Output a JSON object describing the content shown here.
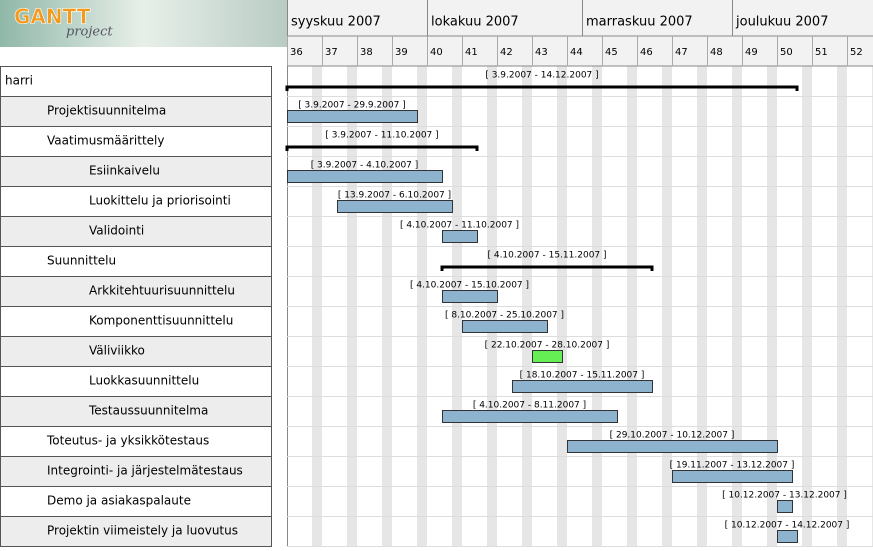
{
  "logo": {
    "brand": "GANTT",
    "sub": "project"
  },
  "months": [
    "syyskuu 2007",
    "lokakuu 2007",
    "marraskuu 2007",
    "joulukuu 2007"
  ],
  "weeks": [
    36,
    37,
    38,
    39,
    40,
    41,
    42,
    43,
    44,
    45,
    46,
    47,
    48,
    49,
    50,
    51,
    52
  ],
  "tasks": [
    {
      "name": "harri",
      "level": 0,
      "summary": true,
      "label": "[ 3.9.2007 - 14.12.2007 ]"
    },
    {
      "name": "Projektisuunnitelma",
      "level": 1,
      "label": "[ 3.9.2007 - 29.9.2007 ]"
    },
    {
      "name": "Vaatimusmäärittely",
      "level": 1,
      "summary": true,
      "label": "[ 3.9.2007 - 11.10.2007 ]"
    },
    {
      "name": "Esiinkaivelu",
      "level": 2,
      "label": "[ 3.9.2007 - 4.10.2007 ]"
    },
    {
      "name": "Luokittelu ja priorisointi",
      "level": 2,
      "label": "[ 13.9.2007 - 6.10.2007 ]"
    },
    {
      "name": "Validointi",
      "level": 2,
      "label": "[ 4.10.2007 - 11.10.2007 ]"
    },
    {
      "name": "Suunnittelu",
      "level": 1,
      "summary": true,
      "label": "[ 4.10.2007 - 15.11.2007 ]"
    },
    {
      "name": "Arkkitehtuurisuunnittelu",
      "level": 2,
      "label": "[ 4.10.2007 - 15.10.2007 ]"
    },
    {
      "name": "Komponenttisuunnittelu",
      "level": 2,
      "label": "[ 8.10.2007 - 25.10.2007 ]"
    },
    {
      "name": "Väliviikko",
      "level": 2,
      "color": "#66ee55",
      "label": "[ 22.10.2007 - 28.10.2007 ]"
    },
    {
      "name": "Luokkasuunnittelu",
      "level": 2,
      "label": "[ 18.10.2007 - 15.11.2007 ]"
    },
    {
      "name": "Testaussuunnitelma",
      "level": 2,
      "label": "[ 4.10.2007 - 8.11.2007 ]"
    },
    {
      "name": "Toteutus- ja yksikkötestaus",
      "level": 1,
      "label": "[ 29.10.2007 - 10.12.2007 ]"
    },
    {
      "name": "Integrointi- ja järjestelmätestaus",
      "level": 1,
      "label": "[ 19.11.2007 - 13.12.2007 ]"
    },
    {
      "name": "Demo ja asiakaspalaute",
      "level": 1,
      "label": "[ 10.12.2007 - 13.12.2007 ]"
    },
    {
      "name": "Projektin viimeistely ja luovutus",
      "level": 1,
      "label": "[ 10.12.2007 - 14.12.2007 ]"
    }
  ]
}
